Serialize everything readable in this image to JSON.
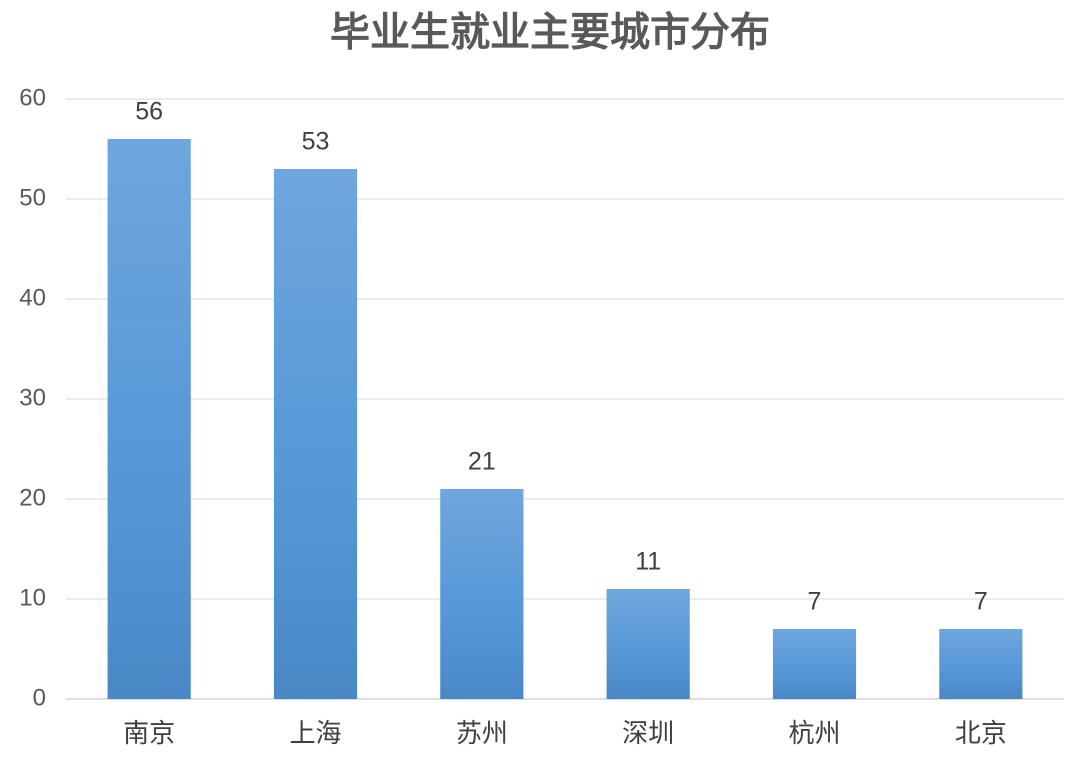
{
  "chart_data": {
    "type": "bar",
    "title": "毕业生就业主要城市分布",
    "categories": [
      "南京",
      "上海",
      "苏州",
      "深圳",
      "杭州",
      "北京"
    ],
    "values": [
      56,
      53,
      21,
      11,
      7,
      7
    ],
    "color": "#4f93d6",
    "ylim": [
      0,
      60
    ],
    "yticks": [
      0,
      10,
      20,
      30,
      40,
      50,
      60
    ],
    "grid": true
  }
}
